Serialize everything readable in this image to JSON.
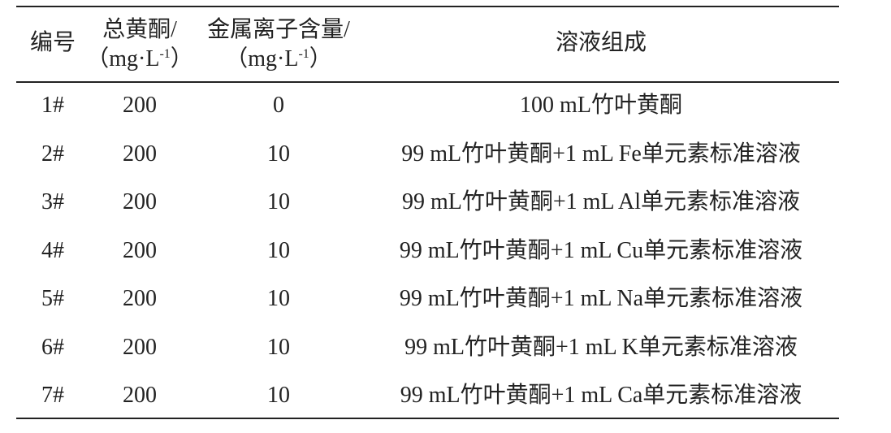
{
  "table": {
    "headers": [
      {
        "line1": "编号"
      },
      {
        "line1": "总黄酮/",
        "unit": "（mg·L",
        "sup": "-1",
        "close": "）"
      },
      {
        "line1": "金属离子含量/",
        "unit": "（mg·L",
        "sup": "-1",
        "close": "）"
      },
      {
        "line1": "溶液组成"
      }
    ],
    "rows": [
      [
        "1#",
        200,
        0,
        "100 mL竹叶黄酮"
      ],
      [
        "2#",
        200,
        10,
        "99 mL竹叶黄酮+1 mL Fe单元素标准溶液"
      ],
      [
        "3#",
        200,
        10,
        "99 mL竹叶黄酮+1 mL Al单元素标准溶液"
      ],
      [
        "4#",
        200,
        10,
        "99 mL竹叶黄酮+1 mL Cu单元素标准溶液"
      ],
      [
        "5#",
        200,
        10,
        "99 mL竹叶黄酮+1 mL Na单元素标准溶液"
      ],
      [
        "6#",
        200,
        10,
        "99 mL竹叶黄酮+1 mL K单元素标准溶液"
      ],
      [
        "7#",
        200,
        10,
        "99 mL竹叶黄酮+1 mL Ca单元素标准溶液"
      ]
    ]
  }
}
